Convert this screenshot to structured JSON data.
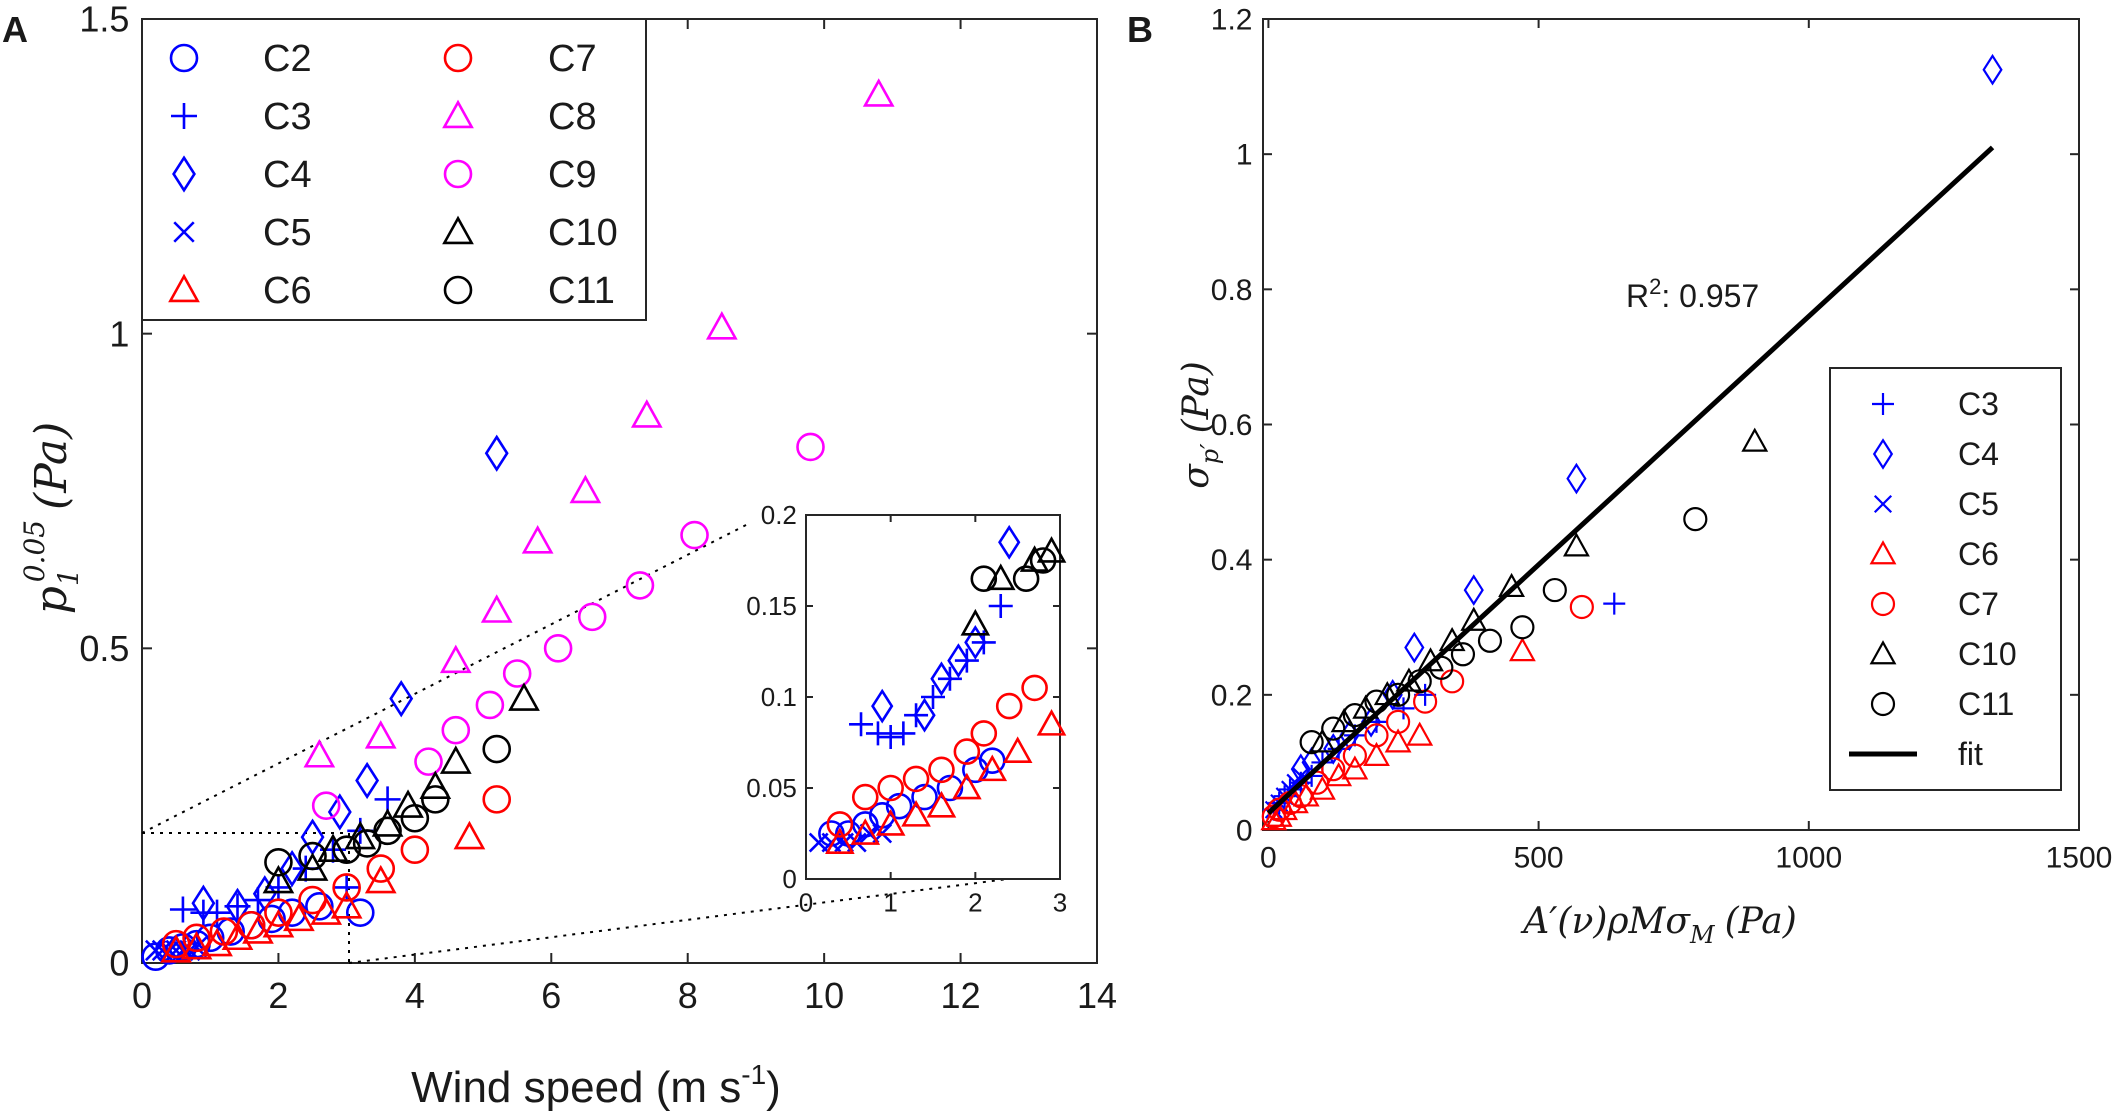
{
  "colors": {
    "blue": "#0000ff",
    "red": "#ff0000",
    "magenta": "#ff00ff",
    "black": "#000000"
  },
  "chart_data": [
    {
      "type": "scatter",
      "panel_label": "A",
      "xlabel": "Wind speed (m s",
      "xlabel_sup": "-1",
      "xlabel_end": ")",
      "ylabel": "p₁^0.05 (Pa)",
      "ylabel_p": "p",
      "ylabel_sub": "1",
      "ylabel_sup": "0.05",
      "ylabel_unit": "(Pa)",
      "xlim": [
        0,
        14
      ],
      "ylim": [
        0,
        1.5
      ],
      "xticks": [
        0,
        2,
        4,
        6,
        8,
        10,
        12,
        14
      ],
      "xtick_labels": [
        "0",
        "2",
        "4",
        "6",
        "8",
        "10",
        "12",
        "14"
      ],
      "yticks": [
        0,
        0.5,
        1,
        1.5
      ],
      "ytick_labels": [
        "0",
        "0.5",
        "1",
        "1.5"
      ],
      "legend": [
        {
          "name": "C2",
          "marker": "circle",
          "color": "#0000ff"
        },
        {
          "name": "C3",
          "marker": "plus",
          "color": "#0000ff"
        },
        {
          "name": "C4",
          "marker": "diamond",
          "color": "#0000ff"
        },
        {
          "name": "C5",
          "marker": "x",
          "color": "#0000ff"
        },
        {
          "name": "C6",
          "marker": "triangle",
          "color": "#ff0000"
        },
        {
          "name": "C7",
          "marker": "circle",
          "color": "#ff0000"
        },
        {
          "name": "C8",
          "marker": "triangle",
          "color": "#ff00ff"
        },
        {
          "name": "C9",
          "marker": "circle",
          "color": "#ff00ff"
        },
        {
          "name": "C10",
          "marker": "triangle",
          "color": "#000000"
        },
        {
          "name": "C11",
          "marker": "circle",
          "color": "#000000"
        }
      ],
      "series": [
        {
          "name": "C2",
          "x": [
            0.2,
            0.4,
            0.6,
            0.8,
            1.0,
            1.3,
            1.6,
            1.9,
            2.2,
            2.6,
            3.2
          ],
          "y": [
            0.01,
            0.02,
            0.025,
            0.03,
            0.04,
            0.05,
            0.06,
            0.07,
            0.08,
            0.09,
            0.08
          ]
        },
        {
          "name": "C3",
          "x": [
            0.6,
            0.9,
            1.1,
            1.4,
            1.7,
            2.0,
            2.4,
            2.8,
            3.2,
            3.6,
            3.0
          ],
          "y": [
            0.085,
            0.08,
            0.08,
            0.09,
            0.1,
            0.12,
            0.15,
            0.18,
            0.21,
            0.26,
            0.12
          ]
        },
        {
          "name": "C4",
          "x": [
            0.9,
            1.4,
            1.8,
            2.2,
            2.5,
            2.9,
            3.3,
            3.8,
            5.2
          ],
          "y": [
            0.095,
            0.09,
            0.11,
            0.15,
            0.2,
            0.24,
            0.29,
            0.42,
            0.81
          ]
        },
        {
          "name": "C5",
          "x": [
            0.2,
            0.3,
            0.4,
            0.5,
            0.6,
            0.7,
            0.8
          ],
          "y": [
            0.02,
            0.02,
            0.02,
            0.02,
            0.02,
            0.02,
            0.025
          ]
        },
        {
          "name": "C6",
          "x": [
            0.5,
            0.8,
            1.1,
            1.4,
            1.7,
            2.0,
            2.3,
            2.7,
            3.0,
            3.5,
            4.8
          ],
          "y": [
            0.02,
            0.025,
            0.03,
            0.04,
            0.05,
            0.06,
            0.07,
            0.08,
            0.09,
            0.13,
            0.2
          ]
        },
        {
          "name": "C7",
          "x": [
            0.5,
            0.8,
            1.2,
            1.6,
            2.0,
            2.5,
            3.0,
            3.5,
            4.0,
            5.2
          ],
          "y": [
            0.03,
            0.04,
            0.05,
            0.06,
            0.08,
            0.1,
            0.12,
            0.15,
            0.18,
            0.26
          ]
        },
        {
          "name": "C8",
          "x": [
            2.6,
            3.5,
            4.6,
            5.2,
            5.8,
            6.5,
            7.4,
            8.5,
            10.8
          ],
          "y": [
            0.33,
            0.36,
            0.48,
            0.56,
            0.67,
            0.75,
            0.87,
            1.01,
            1.38
          ]
        },
        {
          "name": "C9",
          "x": [
            2.7,
            4.2,
            4.6,
            5.1,
            5.5,
            6.1,
            6.6,
            7.3,
            8.1,
            9.8
          ],
          "y": [
            0.25,
            0.32,
            0.37,
            0.41,
            0.46,
            0.5,
            0.55,
            0.6,
            0.68,
            0.82
          ]
        },
        {
          "name": "C10",
          "x": [
            2.0,
            2.5,
            2.8,
            3.2,
            3.6,
            3.9,
            4.3,
            4.6,
            5.6
          ],
          "y": [
            0.13,
            0.15,
            0.18,
            0.2,
            0.22,
            0.25,
            0.28,
            0.32,
            0.42
          ]
        },
        {
          "name": "C11",
          "x": [
            2.0,
            2.5,
            3.0,
            3.3,
            3.6,
            4.0,
            4.3,
            5.2
          ],
          "y": [
            0.16,
            0.17,
            0.18,
            0.19,
            0.21,
            0.23,
            0.26,
            0.34
          ]
        }
      ],
      "inset": {
        "xlim": [
          0,
          3
        ],
        "ylim": [
          0,
          0.2
        ],
        "xticks": [
          0,
          1,
          2,
          3
        ],
        "xtick_labels": [
          "0",
          "1",
          "2",
          "3"
        ],
        "yticks": [
          0,
          0.05,
          0.1,
          0.15,
          0.2
        ],
        "ytick_labels": [
          "0",
          "0.05",
          "0.1",
          "0.15",
          "0.2"
        ],
        "series": [
          {
            "name": "C2",
            "x": [
              0.3,
              0.5,
              0.7,
              0.9,
              1.1,
              1.4,
              1.7,
              2.0,
              2.2
            ],
            "y": [
              0.025,
              0.025,
              0.03,
              0.035,
              0.04,
              0.045,
              0.05,
              0.06,
              0.065
            ]
          },
          {
            "name": "C3",
            "x": [
              0.65,
              0.85,
              1.0,
              1.15,
              1.3,
              1.5,
              1.7,
              1.9,
              2.1,
              2.3
            ],
            "y": [
              0.085,
              0.08,
              0.078,
              0.08,
              0.09,
              0.1,
              0.11,
              0.12,
              0.13,
              0.15
            ]
          },
          {
            "name": "C4",
            "x": [
              0.9,
              1.4,
              1.6,
              1.8,
              2.0,
              2.4
            ],
            "y": [
              0.095,
              0.09,
              0.11,
              0.12,
              0.13,
              0.185
            ]
          },
          {
            "name": "C5",
            "x": [
              0.15,
              0.3,
              0.45,
              0.6,
              0.75,
              0.9
            ],
            "y": [
              0.02,
              0.02,
              0.02,
              0.02,
              0.025,
              0.025
            ]
          },
          {
            "name": "C6",
            "x": [
              0.4,
              0.7,
              1.0,
              1.3,
              1.6,
              1.9,
              2.2,
              2.5,
              2.9
            ],
            "y": [
              0.02,
              0.025,
              0.03,
              0.035,
              0.04,
              0.05,
              0.06,
              0.07,
              0.085
            ]
          },
          {
            "name": "C7",
            "x": [
              0.4,
              0.7,
              1.0,
              1.3,
              1.6,
              1.9,
              2.1,
              2.4,
              2.7
            ],
            "y": [
              0.03,
              0.045,
              0.05,
              0.055,
              0.06,
              0.07,
              0.08,
              0.095,
              0.105
            ]
          },
          {
            "name": "C10",
            "x": [
              2.0,
              2.3,
              2.7,
              2.9
            ],
            "y": [
              0.14,
              0.165,
              0.175,
              0.18
            ]
          },
          {
            "name": "C11",
            "x": [
              2.1,
              2.6,
              2.8
            ],
            "y": [
              0.165,
              0.165,
              0.175
            ]
          }
        ]
      }
    },
    {
      "type": "scatter",
      "panel_label": "B",
      "xlabel": "A′(ν)ρMσM (Pa)",
      "xlabel_main": "A′(ν)ρMσ",
      "xlabel_sub": "M",
      "xlabel_unit": "(Pa)",
      "ylabel": "σp′ (Pa)",
      "ylabel_main": "σ",
      "ylabel_sub": "p′",
      "ylabel_unit": "(Pa)",
      "xlim": [
        -10,
        1500
      ],
      "ylim": [
        0,
        1.2
      ],
      "xticks": [
        0,
        500,
        1000,
        1500
      ],
      "xtick_labels": [
        "0",
        "500",
        "1000",
        "1500"
      ],
      "yticks": [
        0,
        0.2,
        0.4,
        0.6,
        0.8,
        1,
        1.2
      ],
      "ytick_labels": [
        "0",
        "0.2",
        "0.4",
        "0.6",
        "0.8",
        "1",
        "1.2"
      ],
      "annotation": {
        "text_main": "R",
        "text_sup": "2",
        "text_end": ": 0.957",
        "x": 660,
        "y": 0.79
      },
      "fit": {
        "name": "fit",
        "x": [
          0,
          1340
        ],
        "y": [
          0.025,
          1.01
        ]
      },
      "legend": [
        {
          "name": "C3",
          "marker": "plus",
          "color": "#0000ff"
        },
        {
          "name": "C4",
          "marker": "diamond",
          "color": "#0000ff"
        },
        {
          "name": "C5",
          "marker": "x",
          "color": "#0000ff"
        },
        {
          "name": "C6",
          "marker": "triangle",
          "color": "#ff0000"
        },
        {
          "name": "C7",
          "marker": "circle",
          "color": "#ff0000"
        },
        {
          "name": "C10",
          "marker": "triangle",
          "color": "#000000"
        },
        {
          "name": "C11",
          "marker": "circle",
          "color": "#000000"
        },
        {
          "name": "fit",
          "marker": "line",
          "color": "#000000"
        }
      ],
      "series": [
        {
          "name": "C3",
          "x": [
            10,
            20,
            30,
            40,
            60,
            80,
            100,
            130,
            160,
            200,
            250,
            290,
            640
          ],
          "y": [
            0.03,
            0.04,
            0.05,
            0.06,
            0.07,
            0.08,
            0.1,
            0.12,
            0.14,
            0.16,
            0.18,
            0.2,
            0.335
          ]
        },
        {
          "name": "C4",
          "x": [
            60,
            80,
            120,
            150,
            190,
            230,
            270,
            380,
            570,
            1340
          ],
          "y": [
            0.09,
            0.1,
            0.12,
            0.14,
            0.16,
            0.2,
            0.27,
            0.355,
            0.52,
            1.125
          ]
        },
        {
          "name": "C5",
          "x": [
            10,
            20,
            30,
            40,
            50,
            60
          ],
          "y": [
            0.03,
            0.04,
            0.05,
            0.06,
            0.07,
            0.08
          ]
        },
        {
          "name": "C6",
          "x": [
            10,
            20,
            30,
            50,
            70,
            100,
            130,
            160,
            200,
            240,
            280,
            470
          ],
          "y": [
            0.015,
            0.02,
            0.03,
            0.04,
            0.05,
            0.06,
            0.08,
            0.09,
            0.11,
            0.13,
            0.14,
            0.265
          ]
        },
        {
          "name": "C7",
          "x": [
            10,
            20,
            40,
            60,
            90,
            120,
            160,
            200,
            240,
            290,
            340,
            580
          ],
          "y": [
            0.02,
            0.03,
            0.04,
            0.05,
            0.07,
            0.09,
            0.11,
            0.14,
            0.16,
            0.19,
            0.22,
            0.33
          ]
        },
        {
          "name": "C10",
          "x": [
            100,
            140,
            180,
            220,
            260,
            300,
            340,
            380,
            450,
            570,
            900
          ],
          "y": [
            0.13,
            0.16,
            0.18,
            0.2,
            0.22,
            0.25,
            0.28,
            0.31,
            0.36,
            0.42,
            0.575
          ]
        },
        {
          "name": "C11",
          "x": [
            80,
            120,
            160,
            200,
            240,
            280,
            320,
            360,
            410,
            470,
            530,
            790
          ],
          "y": [
            0.13,
            0.15,
            0.17,
            0.19,
            0.2,
            0.22,
            0.24,
            0.26,
            0.28,
            0.3,
            0.355,
            0.46
          ]
        }
      ]
    }
  ]
}
